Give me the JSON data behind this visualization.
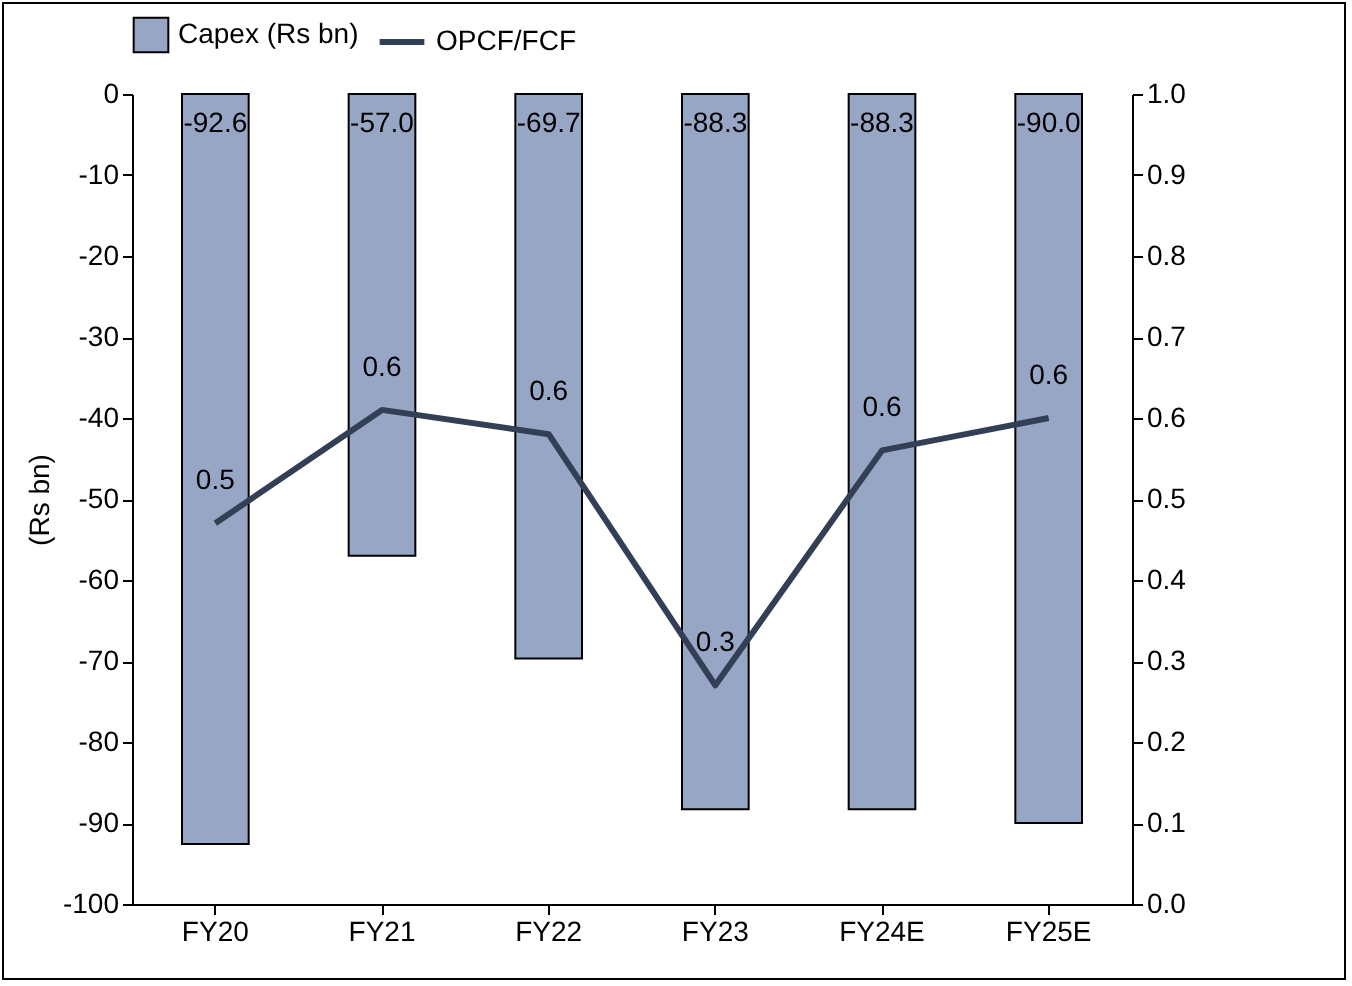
{
  "chart_data": {
    "type": "bar",
    "ylabel": "(Rs bn)",
    "categories": [
      "FY20",
      "FY21",
      "FY22",
      "FY23",
      "FY24E",
      "FY25E"
    ],
    "series": [
      {
        "name": "Capex (Rs bn)",
        "color": "#97a6c4",
        "values": [
          -92.6,
          -57.0,
          -69.7,
          -88.3,
          -88.3,
          -90.0
        ],
        "value_labels": [
          "-92.6",
          "-57.0",
          "-69.7",
          "-88.3",
          "-88.3",
          "-90.0"
        ]
      },
      {
        "name": "OPCF/FCF",
        "type": "line",
        "axis": "y2",
        "color": "#333f55",
        "values": [
          0.47,
          0.61,
          0.58,
          0.27,
          0.56,
          0.6
        ],
        "value_labels": [
          "0.5",
          "0.6",
          "0.6",
          "0.3",
          "0.6",
          "0.6"
        ]
      }
    ],
    "ylim": [
      -100,
      0
    ],
    "yticks": [
      -100,
      -90,
      -80,
      -70,
      -60,
      -50,
      -40,
      -30,
      -20,
      -10,
      0
    ],
    "y2lim": [
      0,
      1
    ],
    "y2ticks": [
      {
        "value": 0,
        "label": "0.0"
      },
      0.1,
      0.2,
      0.3,
      0.4,
      0.5,
      0.6,
      0.7,
      0.8,
      0.9,
      {
        "value": 1,
        "label": "1.0"
      }
    ],
    "legend": "top",
    "line_style": "solid"
  }
}
